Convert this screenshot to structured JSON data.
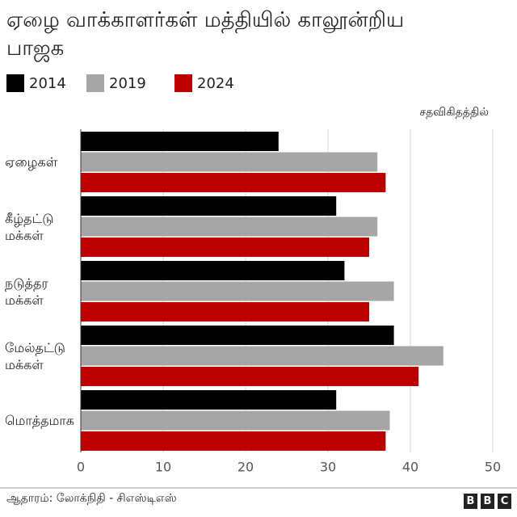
{
  "chart_data": {
    "type": "hbar",
    "title": "ஏழை வாக்காளர்கள் மத்தியில் காலூன்றிய பாஜக",
    "unit_label": "சதவிகிதத்தில்",
    "categories": [
      "ஏழைகள்",
      "கீழ்தட்டு மக்கள்",
      "நடுத்தர மக்கள்",
      "மேல்தட்டு மக்கள்",
      "மொத்தமாக"
    ],
    "series": [
      {
        "name": "2014",
        "color": "#000000",
        "values": [
          24,
          31,
          32,
          38,
          31
        ]
      },
      {
        "name": "2019",
        "color": "#a6a6a6",
        "values": [
          36,
          36,
          38,
          44,
          37.5
        ]
      },
      {
        "name": "2024",
        "color": "#bb0000",
        "values": [
          37,
          35,
          35,
          41,
          37
        ]
      }
    ],
    "xlim": [
      0,
      50
    ],
    "xticks": [
      0,
      10,
      20,
      30,
      40,
      50
    ],
    "grid": true,
    "source": "ஆதாரம்: லோக்நிதி - சிஎஸ்டிஎஸ்",
    "logo": [
      "B",
      "B",
      "C"
    ]
  }
}
